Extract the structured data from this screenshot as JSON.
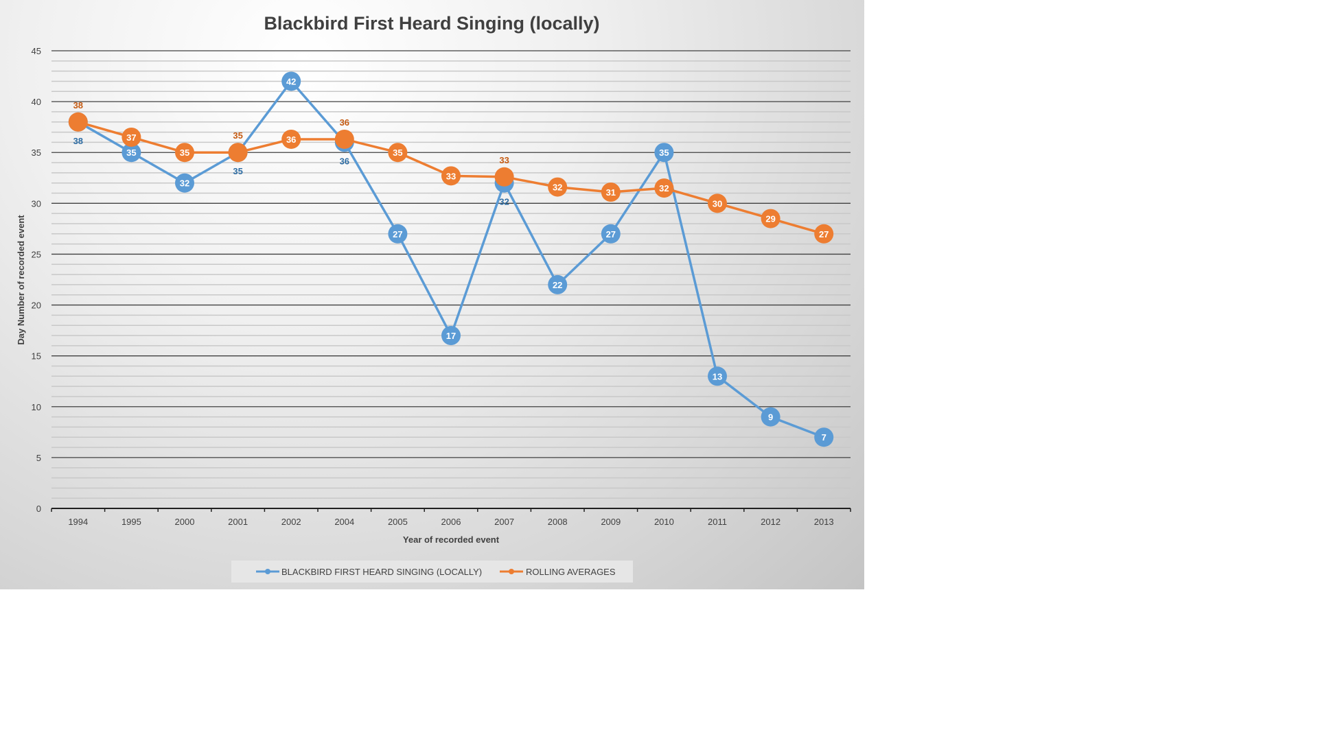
{
  "chart_data": {
    "type": "line",
    "title": "Blackbird First Heard Singing (locally)",
    "xlabel": "Year of recorded event",
    "ylabel": "Day Number of recorded event",
    "ylim": [
      0,
      45
    ],
    "yticks": [
      0,
      5,
      10,
      15,
      20,
      25,
      30,
      35,
      40,
      45
    ],
    "grid": true,
    "legend_position": "bottom",
    "categories": [
      "1994",
      "1995",
      "2000",
      "2001",
      "2002",
      "2004",
      "2005",
      "2006",
      "2007",
      "2008",
      "2009",
      "2010",
      "2011",
      "2012",
      "2013"
    ],
    "series": [
      {
        "name": "BLACKBIRD FIRST HEARD SINGING (LOCALLY)",
        "color": "#5b9bd5",
        "values": [
          38,
          35,
          32,
          35,
          42,
          36,
          27,
          17,
          32,
          22,
          27,
          35,
          13,
          9,
          7
        ],
        "labels": [
          "38",
          "35",
          "32",
          "35",
          "42",
          "36",
          "27",
          "17",
          "32",
          "22",
          "27",
          "35",
          "13",
          "9",
          "7"
        ]
      },
      {
        "name": "ROLLING AVERAGES",
        "color": "#ed7d31",
        "values": [
          38,
          36.5,
          35,
          35,
          36.3,
          36.3,
          35,
          32.7,
          32.6,
          31.6,
          31.1,
          31.5,
          30,
          28.5,
          27
        ],
        "labels": [
          "38",
          "37",
          "35",
          "35",
          "36",
          "36",
          "35",
          "33",
          "33",
          "32",
          "31",
          "32",
          "30",
          "29",
          "27"
        ]
      }
    ]
  }
}
